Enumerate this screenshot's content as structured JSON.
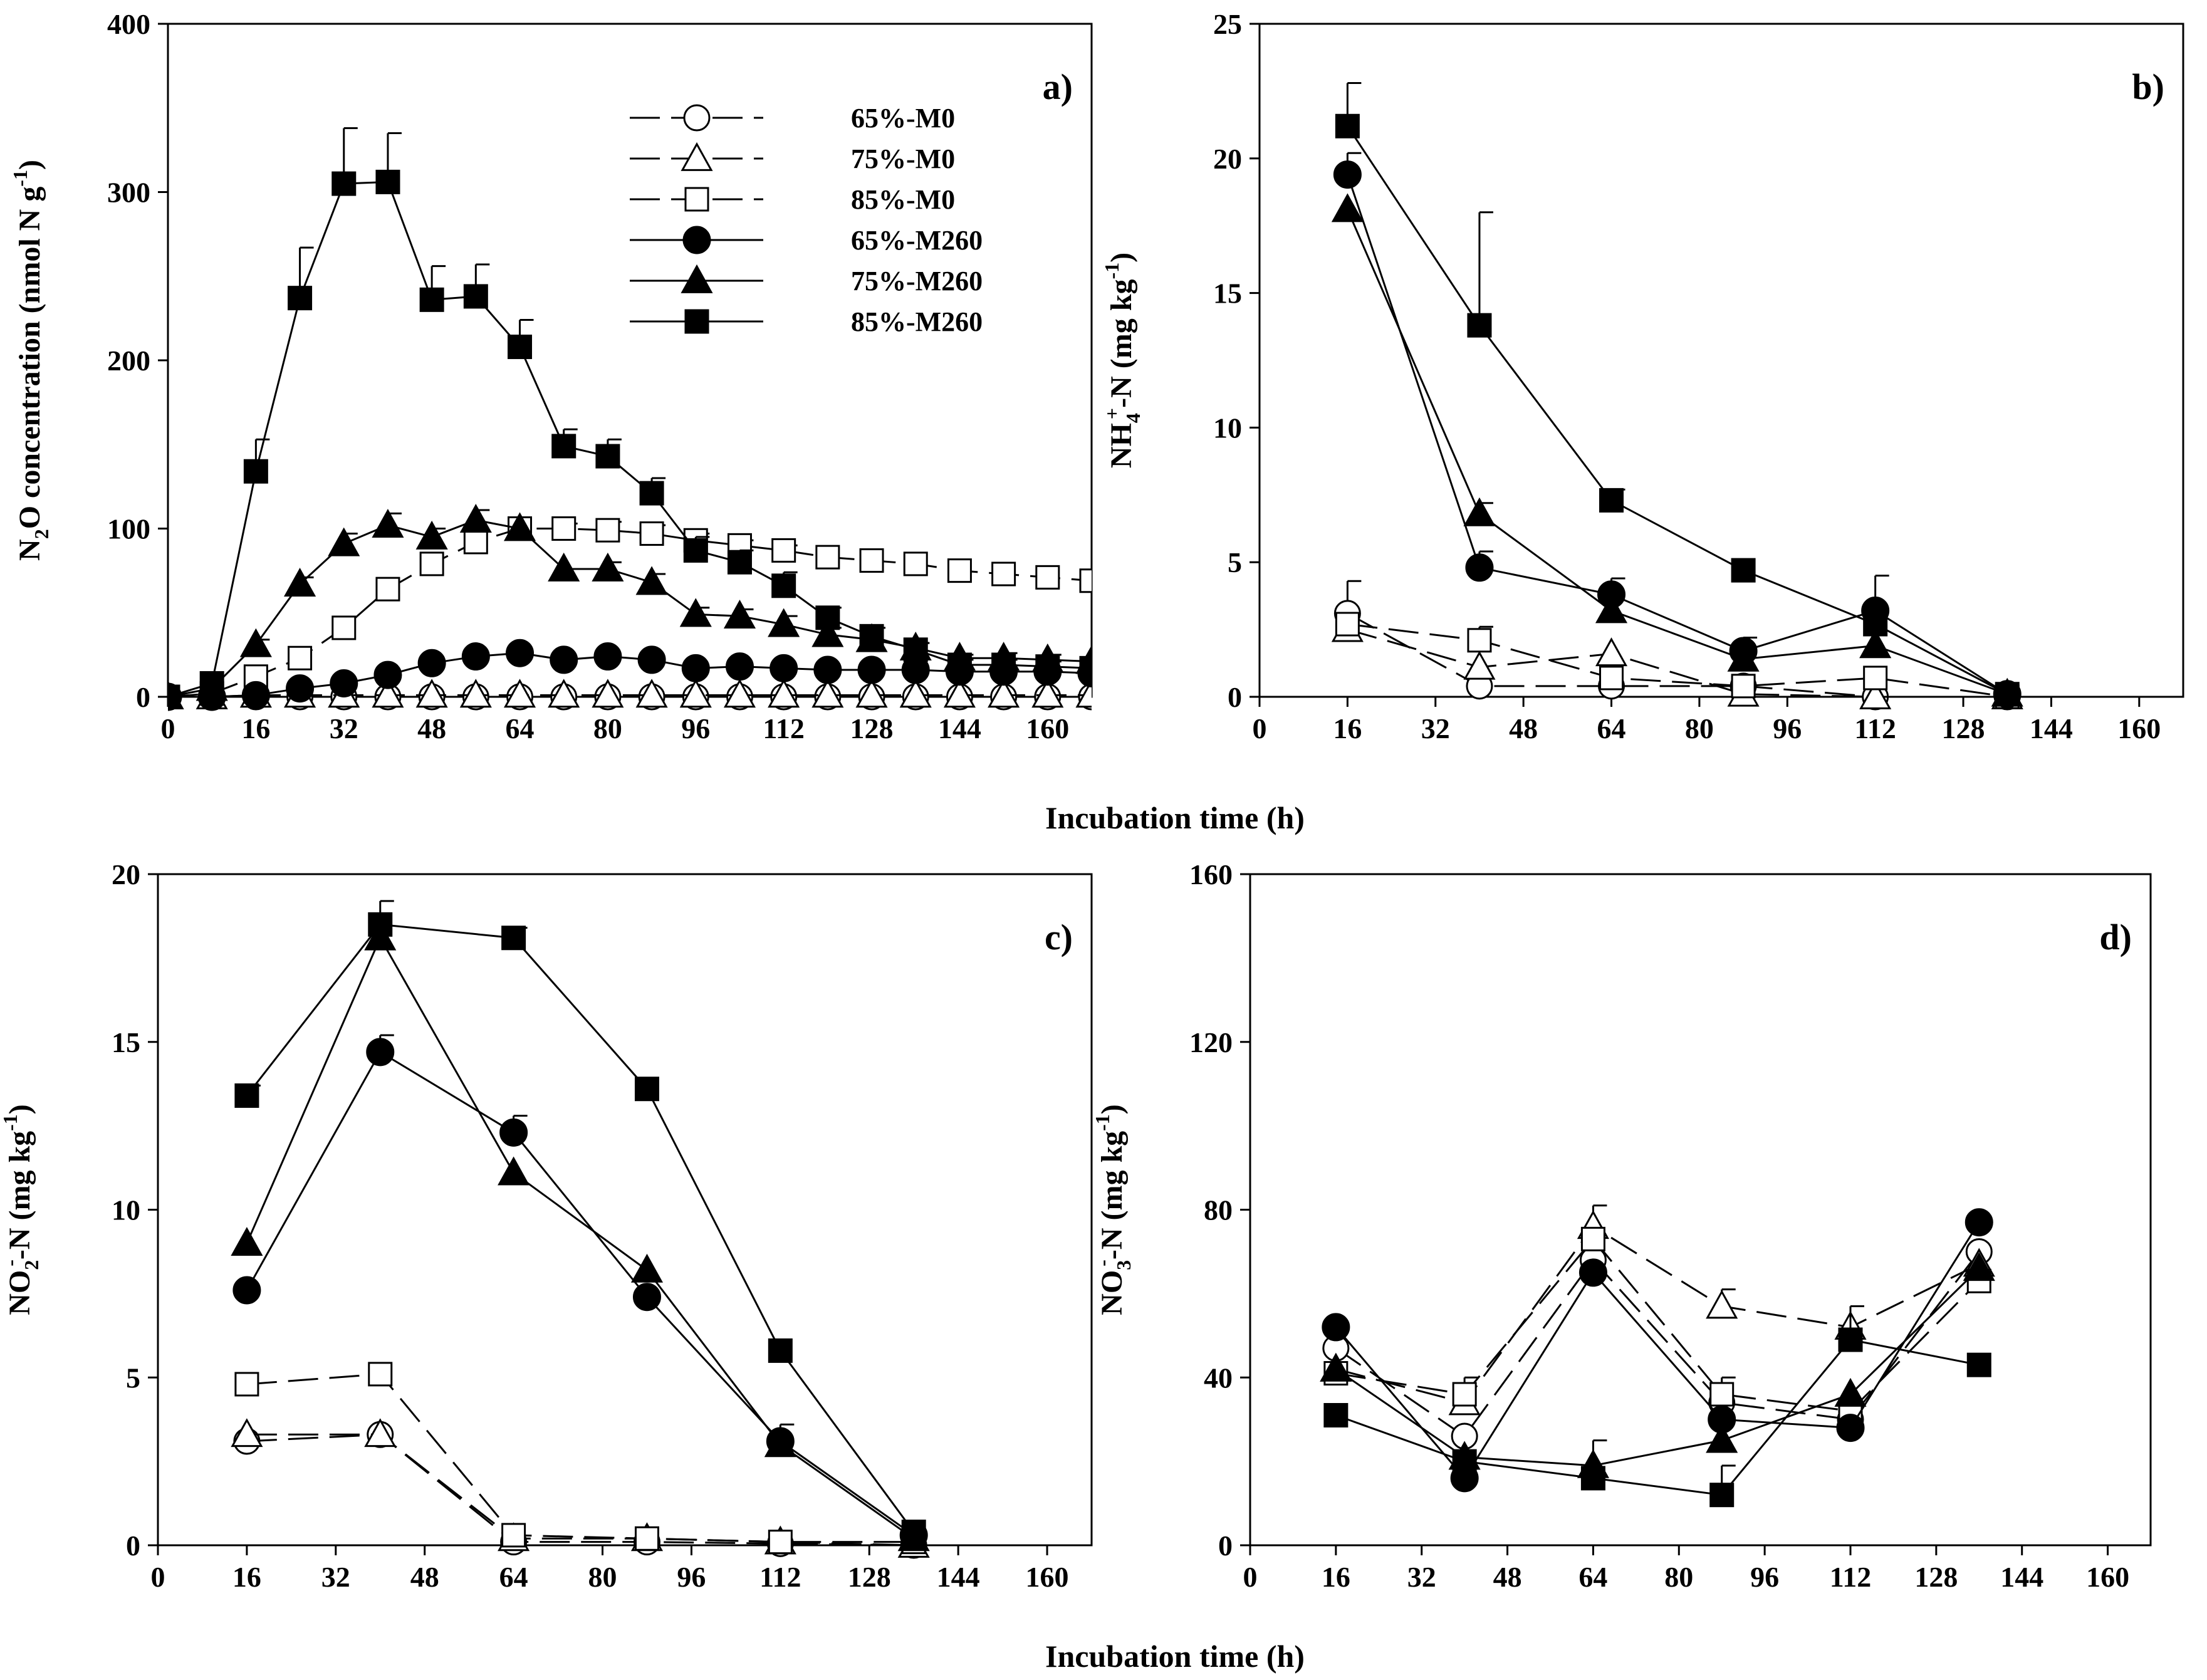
{
  "figure": {
    "xlabel": "Incubation time (h)"
  },
  "chart_data": [
    {
      "panel": "a",
      "type": "line",
      "panel_label": "a)",
      "ylabel": {
        "main": "N",
        "sub": "2",
        "rest": "O concentration (nmol N g",
        "sup": "-1",
        "end": ")"
      },
      "xlim": [
        0,
        168
      ],
      "ylim": [
        0,
        400
      ],
      "xticks": [
        0,
        16,
        32,
        48,
        64,
        80,
        96,
        112,
        128,
        144,
        160
      ],
      "yticks": [
        0,
        100,
        200,
        300,
        400
      ],
      "legend": {
        "placement": "top-right"
      },
      "series": [
        {
          "name": "65%-M0",
          "marker": "circle",
          "fill": "open",
          "line": "dashed",
          "x": [
            0,
            8,
            16,
            24,
            32,
            40,
            48,
            56,
            64,
            72,
            80,
            88,
            96,
            104,
            112,
            120,
            128,
            136,
            144,
            152,
            160,
            168
          ],
          "y": [
            0,
            0,
            0,
            0,
            0,
            0,
            0,
            0,
            0,
            0,
            0,
            0,
            0,
            0,
            0,
            0,
            0,
            0,
            0,
            0,
            0,
            0
          ]
        },
        {
          "name": "75%-M0",
          "marker": "triangle",
          "fill": "open",
          "line": "dashed",
          "x": [
            0,
            8,
            16,
            24,
            32,
            40,
            48,
            56,
            64,
            72,
            80,
            88,
            96,
            104,
            112,
            120,
            128,
            136,
            144,
            152,
            160,
            168
          ],
          "y": [
            0,
            0,
            1,
            1,
            1,
            1,
            1,
            1,
            1,
            1,
            1,
            1,
            1,
            1,
            1,
            1,
            1,
            1,
            1,
            1,
            1,
            1
          ]
        },
        {
          "name": "85%-M0",
          "marker": "square",
          "fill": "open",
          "line": "dashed",
          "x": [
            0,
            8,
            16,
            24,
            32,
            40,
            48,
            56,
            64,
            72,
            80,
            88,
            96,
            104,
            112,
            120,
            128,
            136,
            144,
            152,
            160,
            168
          ],
          "y": [
            0,
            2,
            12,
            23,
            41,
            64,
            79,
            92,
            100,
            100,
            99,
            97,
            93,
            90,
            87,
            83,
            81,
            79,
            75,
            73,
            71,
            69
          ],
          "err": [
            0,
            0,
            0,
            0,
            0,
            0,
            0,
            0,
            0,
            3,
            5,
            5,
            4,
            3,
            3,
            0,
            0,
            0,
            0,
            0,
            0,
            0
          ]
        },
        {
          "name": "65%-M260",
          "marker": "circle",
          "fill": "filled",
          "line": "solid",
          "x": [
            0,
            8,
            16,
            24,
            32,
            40,
            48,
            56,
            64,
            72,
            80,
            88,
            96,
            104,
            112,
            120,
            128,
            136,
            144,
            152,
            160,
            168
          ],
          "y": [
            0,
            0,
            1,
            5,
            8,
            13,
            20,
            24,
            26,
            22,
            24,
            22,
            17,
            18,
            17,
            16,
            16,
            16,
            15,
            15,
            15,
            14
          ]
        },
        {
          "name": "75%-M260",
          "marker": "triangle",
          "fill": "filled",
          "line": "solid",
          "x": [
            0,
            8,
            16,
            24,
            32,
            40,
            48,
            56,
            64,
            72,
            80,
            88,
            96,
            104,
            112,
            120,
            128,
            136,
            144,
            152,
            160,
            168
          ],
          "y": [
            0,
            5,
            31,
            67,
            91,
            102,
            95,
            105,
            100,
            76,
            76,
            68,
            49,
            48,
            43,
            37,
            34,
            29,
            23,
            23,
            22,
            21
          ],
          "err": [
            0,
            0,
            3,
            4,
            6,
            7,
            5,
            6,
            0,
            0,
            4,
            5,
            4,
            4,
            5,
            4,
            0,
            3,
            2,
            3,
            3,
            3
          ]
        },
        {
          "name": "85%-M260",
          "marker": "square",
          "fill": "filled",
          "line": "solid",
          "x": [
            0,
            8,
            16,
            24,
            32,
            40,
            48,
            56,
            64,
            72,
            80,
            88,
            96,
            104,
            112,
            120,
            128,
            136,
            144,
            152,
            160,
            168
          ],
          "y": [
            0,
            8,
            134,
            237,
            305,
            306,
            236,
            238,
            208,
            149,
            143,
            121,
            87,
            80,
            66,
            47,
            36,
            28,
            19,
            19,
            18,
            17
          ],
          "err": [
            0,
            0,
            19,
            30,
            33,
            29,
            20,
            19,
            16,
            10,
            10,
            9,
            8,
            7,
            8,
            6,
            5,
            4,
            3,
            3,
            3,
            3
          ]
        }
      ]
    },
    {
      "panel": "b",
      "type": "line",
      "panel_label": "b)",
      "ylabel": {
        "main": "NH",
        "sub": "4",
        "sup1": "+",
        "rest": "-N (mg kg",
        "sup": "-1",
        "end": ")"
      },
      "xlim": [
        0,
        168
      ],
      "ylim": [
        0,
        25
      ],
      "xticks": [
        0,
        16,
        32,
        48,
        64,
        80,
        96,
        112,
        128,
        144,
        160
      ],
      "yticks": [
        0,
        5,
        10,
        15,
        20,
        25
      ],
      "series": [
        {
          "name": "65%-M0",
          "marker": "circle",
          "fill": "open",
          "line": "dashed",
          "x": [
            16,
            40,
            64,
            88,
            112,
            136
          ],
          "y": [
            3.1,
            0.4,
            0.4,
            0.4,
            -0.5,
            0
          ],
          "err": [
            1.2,
            0,
            0,
            0,
            0,
            0
          ]
        },
        {
          "name": "75%-M0",
          "marker": "triangle",
          "fill": "open",
          "line": "dashed",
          "x": [
            16,
            40,
            64,
            88,
            112,
            136
          ],
          "y": [
            2.5,
            1.1,
            1.6,
            0.1,
            -0.3,
            0
          ]
        },
        {
          "name": "85%-M0",
          "marker": "square",
          "fill": "open",
          "line": "dashed",
          "x": [
            16,
            40,
            64,
            88,
            112,
            136
          ],
          "y": [
            2.7,
            2.1,
            0.7,
            0.4,
            0.7,
            0
          ],
          "err": [
            0,
            0.5,
            0,
            0,
            0,
            0
          ]
        },
        {
          "name": "65%-M260",
          "marker": "circle",
          "fill": "filled",
          "line": "solid",
          "x": [
            16,
            40,
            64,
            88,
            112,
            136
          ],
          "y": [
            19.4,
            4.8,
            3.8,
            1.7,
            3.2,
            0.1
          ],
          "err": [
            0.8,
            0.6,
            0.6,
            0.5,
            1.3,
            0
          ]
        },
        {
          "name": "75%-M260",
          "marker": "triangle",
          "fill": "filled",
          "line": "solid",
          "x": [
            16,
            40,
            64,
            88,
            112,
            136
          ],
          "y": [
            18.1,
            6.8,
            3.2,
            1.4,
            1.9,
            0.1
          ],
          "err": [
            0,
            0.4,
            0,
            0,
            0,
            0
          ]
        },
        {
          "name": "85%-M260",
          "marker": "square",
          "fill": "filled",
          "line": "solid",
          "x": [
            16,
            40,
            64,
            88,
            112,
            136
          ],
          "y": [
            21.2,
            13.8,
            7.3,
            4.7,
            2.7,
            0.1
          ],
          "err": [
            1.6,
            4.2,
            0.4,
            0,
            0,
            0
          ]
        }
      ]
    },
    {
      "panel": "c",
      "type": "line",
      "panel_label": "c)",
      "ylabel": {
        "main": "NO",
        "sub": "2",
        "sup1": "-",
        "rest": "-N (mg kg",
        "sup": "-1",
        "end": ")"
      },
      "xlim": [
        0,
        168
      ],
      "ylim": [
        0,
        20
      ],
      "xticks": [
        0,
        16,
        32,
        48,
        64,
        80,
        96,
        112,
        128,
        144,
        160
      ],
      "yticks": [
        0,
        5,
        10,
        15,
        20
      ],
      "series": [
        {
          "name": "65%-M0",
          "marker": "circle",
          "fill": "open",
          "line": "dashed",
          "x": [
            16,
            40,
            64,
            88,
            112,
            136
          ],
          "y": [
            3.1,
            3.3,
            0.1,
            0.1,
            0.05,
            0
          ]
        },
        {
          "name": "75%-M0",
          "marker": "triangle",
          "fill": "open",
          "line": "dashed",
          "x": [
            16,
            40,
            64,
            88,
            112,
            136
          ],
          "y": [
            3.3,
            3.3,
            0.2,
            0.2,
            0.1,
            0
          ]
        },
        {
          "name": "85%-M0",
          "marker": "square",
          "fill": "open",
          "line": "dashed",
          "x": [
            16,
            40,
            64,
            88,
            112,
            136
          ],
          "y": [
            4.8,
            5.1,
            0.3,
            0.2,
            0.1,
            0.1
          ]
        },
        {
          "name": "65%-M260",
          "marker": "circle",
          "fill": "filled",
          "line": "solid",
          "x": [
            16,
            40,
            64,
            88,
            112,
            136
          ],
          "y": [
            7.6,
            14.7,
            12.3,
            7.4,
            3.1,
            0.3
          ],
          "err": [
            0,
            0.5,
            0.5,
            0,
            0.5,
            0
          ]
        },
        {
          "name": "75%-M260",
          "marker": "triangle",
          "fill": "filled",
          "line": "solid",
          "x": [
            16,
            40,
            64,
            88,
            112,
            136
          ],
          "y": [
            9.0,
            18.1,
            11.1,
            8.2,
            3.0,
            0.2
          ]
        },
        {
          "name": "85%-M260",
          "marker": "square",
          "fill": "filled",
          "line": "solid",
          "x": [
            16,
            40,
            64,
            88,
            112,
            136
          ],
          "y": [
            13.4,
            18.5,
            18.1,
            13.6,
            5.8,
            0.4
          ],
          "err": [
            0.3,
            0.7,
            0.3,
            0,
            0,
            0
          ]
        }
      ]
    },
    {
      "panel": "d",
      "type": "line",
      "panel_label": "d)",
      "ylabel": {
        "main": "NO",
        "sub": "3",
        "sup1": "-",
        "rest": "-N (mg kg",
        "sup": "-1",
        "end": ")"
      },
      "xlim": [
        0,
        168
      ],
      "ylim": [
        0,
        160
      ],
      "xticks": [
        0,
        16,
        32,
        48,
        64,
        80,
        96,
        112,
        128,
        144,
        160
      ],
      "yticks": [
        0,
        40,
        80,
        120,
        160
      ],
      "series": [
        {
          "name": "65%-M0",
          "marker": "circle",
          "fill": "open",
          "line": "dashed",
          "x": [
            16,
            40,
            64,
            88,
            112,
            136
          ],
          "y": [
            47,
            26,
            68,
            34,
            30,
            70
          ]
        },
        {
          "name": "75%-M0",
          "marker": "triangle",
          "fill": "open",
          "line": "dashed",
          "x": [
            16,
            40,
            64,
            88,
            112,
            136
          ],
          "y": [
            42,
            34,
            76,
            57,
            52,
            67
          ],
          "err": [
            0,
            0,
            5,
            4,
            5,
            0
          ]
        },
        {
          "name": "85%-M0",
          "marker": "square",
          "fill": "open",
          "line": "dashed",
          "x": [
            16,
            40,
            64,
            88,
            112,
            136
          ],
          "y": [
            41,
            36,
            73,
            36,
            32,
            63
          ],
          "err": [
            0,
            4,
            0,
            4,
            0,
            0
          ]
        },
        {
          "name": "65%-M260",
          "marker": "circle",
          "fill": "filled",
          "line": "solid",
          "x": [
            16,
            40,
            64,
            88,
            112,
            136
          ],
          "y": [
            52,
            16,
            65,
            30,
            28,
            77
          ]
        },
        {
          "name": "75%-M260",
          "marker": "triangle",
          "fill": "filled",
          "line": "solid",
          "x": [
            16,
            40,
            64,
            88,
            112,
            136
          ],
          "y": [
            42,
            21,
            19,
            25,
            36,
            66
          ],
          "err": [
            0,
            0,
            6,
            0,
            0,
            0
          ]
        },
        {
          "name": "85%-M260",
          "marker": "square",
          "fill": "filled",
          "line": "solid",
          "x": [
            16,
            40,
            64,
            88,
            112,
            136
          ],
          "y": [
            31,
            20,
            16,
            12,
            49,
            43
          ],
          "err": [
            0,
            0,
            0,
            7,
            8,
            0
          ]
        }
      ]
    }
  ]
}
